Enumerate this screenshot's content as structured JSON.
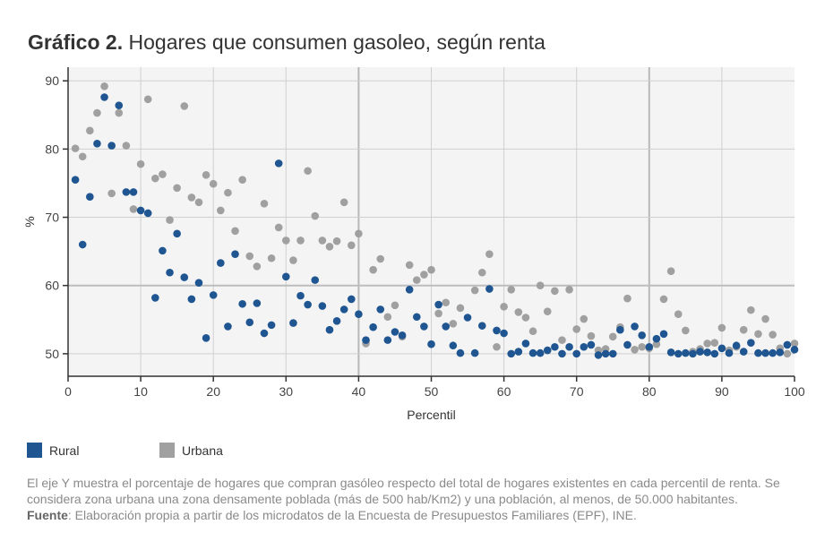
{
  "title": {
    "bold": "Gráfico 2.",
    "rest": " Hogares que consumen gasoleo, según renta"
  },
  "note": {
    "text": "El eje Y muestra el porcentaje de hogares que compran gasóleo respecto del total de hogares existentes en cada percentil de renta. Se considera zona urbana una zona densamente poblada (más de 500 hab/Km2) y una población, al menos, de 50.000 habitantes.",
    "source_label": "Fuente",
    "source_text": ": Elaboración propia a partir de los microdatos de la Encuesta de Presupuestos Familiares (EPF), INE."
  },
  "chart_data": {
    "type": "scatter",
    "title": "Hogares que consumen gasoleo, según renta",
    "xlabel": "Percentil",
    "ylabel": "%",
    "xlim": [
      0,
      100
    ],
    "ylim": [
      46.7,
      92
    ],
    "xticks": [
      0,
      10,
      20,
      30,
      40,
      50,
      60,
      70,
      80,
      90,
      100
    ],
    "yticks": [
      50,
      60,
      70,
      80,
      90
    ],
    "grid": true,
    "legend": "bottom-left",
    "series": [
      {
        "name": "Rural",
        "color": "#1f5591",
        "values": [
          75.5,
          66,
          73,
          80.8,
          87.6,
          80.5,
          86.4,
          73.7,
          73.7,
          71,
          70.6,
          58.2,
          65.1,
          61.9,
          67.6,
          61.2,
          58,
          60.4,
          52.3,
          58.6,
          63.3,
          54,
          64.6,
          57.3,
          54.6,
          57.4,
          53,
          54.2,
          77.9,
          61.3,
          54.5,
          58.5,
          57.2,
          60.8,
          57,
          53.5,
          54.8,
          56.5,
          58,
          55.8,
          52,
          53.9,
          56.5,
          52,
          53.2,
          52.7,
          59.4,
          55.4,
          54,
          51.4,
          57.2,
          54,
          51.2,
          50.1,
          55.3,
          50.1,
          54.1,
          59.5,
          53.4,
          53,
          50,
          50.3,
          51.5,
          50.1,
          50.1,
          50.5,
          51,
          50,
          51,
          50,
          51,
          51.3,
          49.8,
          50,
          50,
          53.5,
          51.3,
          54,
          52.7,
          51,
          52.2,
          52.9,
          50.2,
          50,
          50.1,
          50,
          50.3,
          50.2,
          50,
          50.8,
          50.1,
          51.2,
          50.3,
          51.6,
          50.1,
          50.1,
          50.1,
          50.2,
          51.3,
          50.6
        ]
      },
      {
        "name": "Urbana",
        "color": "#a0a0a0",
        "values": [
          80.1,
          78.9,
          82.7,
          85.3,
          89.2,
          73.5,
          85.3,
          80.5,
          71.2,
          77.8,
          87.3,
          75.7,
          76.3,
          69.6,
          74.3,
          86.3,
          72.9,
          72.2,
          76.2,
          74.9,
          71,
          73.6,
          68,
          75.5,
          64.3,
          62.8,
          72,
          64,
          68.5,
          66.6,
          63.7,
          66.6,
          76.8,
          70.2,
          66.6,
          65.7,
          66.5,
          72.2,
          65.9,
          67.6,
          51.5,
          62.3,
          63.9,
          55.4,
          57.1,
          52.5,
          63,
          60.8,
          61.6,
          62.3,
          55.9,
          57.5,
          54.4,
          56.7,
          null,
          59.3,
          61.9,
          64.6,
          51,
          56.9,
          59.4,
          56.1,
          55.3,
          53.3,
          60,
          56.2,
          59.2,
          52,
          59.4,
          53.6,
          55.1,
          52.6,
          50.5,
          50.7,
          52.5,
          53.9,
          58.1,
          50.6,
          51,
          50.8,
          51.4,
          58,
          62.1,
          55.8,
          53.4,
          50.3,
          50.7,
          51.5,
          51.6,
          53.8,
          50.5,
          51,
          53.5,
          56.4,
          52.9,
          55.1,
          52.8,
          50.8,
          50,
          51.5
        ]
      }
    ]
  }
}
